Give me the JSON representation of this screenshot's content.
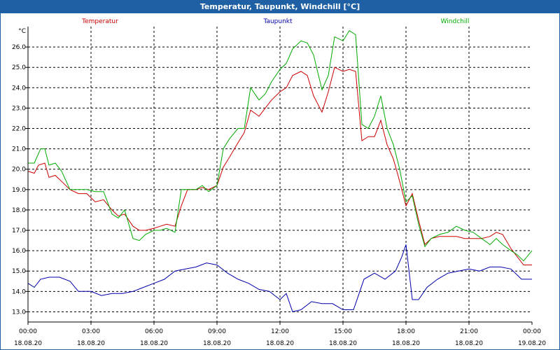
{
  "window": {
    "title": "Temperatur, Taupunkt, Windchill [°C]"
  },
  "chart_data": {
    "type": "line",
    "title": "Temperatur, Taupunkt, Windchill [°C]",
    "ylabel": "°C",
    "ylim": [
      12.5,
      27.0
    ],
    "xlim": [
      0,
      24
    ],
    "grid": true,
    "legend_position": "top",
    "yticks": [
      13.0,
      14.0,
      15.0,
      16.0,
      17.0,
      18.0,
      19.0,
      20.0,
      21.0,
      22.0,
      23.0,
      24.0,
      25.0,
      26.0
    ],
    "xticks": [
      {
        "x": 0,
        "time": "00:00",
        "date": "18.08.20"
      },
      {
        "x": 3,
        "time": "03:00",
        "date": "18.08.20"
      },
      {
        "x": 6,
        "time": "06:00",
        "date": "18.08.20"
      },
      {
        "x": 9,
        "time": "09:00",
        "date": "18.08.20"
      },
      {
        "x": 12,
        "time": "12:00",
        "date": "18.08.20"
      },
      {
        "x": 15,
        "time": "15:00",
        "date": "18.08.20"
      },
      {
        "x": 18,
        "time": "18:00",
        "date": "18.08.20"
      },
      {
        "x": 21,
        "time": "21:00",
        "date": "18.08.20"
      },
      {
        "x": 24,
        "time": "00:00",
        "date": "19.08.20"
      }
    ],
    "series": [
      {
        "name": "Temperatur",
        "color": "#cc0000",
        "points": [
          [
            0,
            19.9
          ],
          [
            0.3,
            19.8
          ],
          [
            0.5,
            20.2
          ],
          [
            0.8,
            20.3
          ],
          [
            1.0,
            19.6
          ],
          [
            1.3,
            19.7
          ],
          [
            1.6,
            19.4
          ],
          [
            2.0,
            19.0
          ],
          [
            2.4,
            18.8
          ],
          [
            2.8,
            18.8
          ],
          [
            3.2,
            18.4
          ],
          [
            3.6,
            18.5
          ],
          [
            4.0,
            18.0
          ],
          [
            4.3,
            17.7
          ],
          [
            4.6,
            17.8
          ],
          [
            5.0,
            17.2
          ],
          [
            5.3,
            17.0
          ],
          [
            5.6,
            17.0
          ],
          [
            6.0,
            17.1
          ],
          [
            6.3,
            17.2
          ],
          [
            6.6,
            17.3
          ],
          [
            7.0,
            17.2
          ],
          [
            7.3,
            18.2
          ],
          [
            7.6,
            19.0
          ],
          [
            8.0,
            19.0
          ],
          [
            8.3,
            19.1
          ],
          [
            8.6,
            19.0
          ],
          [
            9.0,
            19.2
          ],
          [
            9.3,
            20.1
          ],
          [
            9.6,
            20.6
          ],
          [
            10.0,
            21.3
          ],
          [
            10.3,
            21.8
          ],
          [
            10.6,
            22.9
          ],
          [
            11.0,
            22.6
          ],
          [
            11.3,
            23.0
          ],
          [
            11.6,
            23.4
          ],
          [
            12.0,
            23.8
          ],
          [
            12.3,
            24.0
          ],
          [
            12.6,
            24.6
          ],
          [
            13.0,
            24.8
          ],
          [
            13.3,
            24.6
          ],
          [
            13.6,
            23.6
          ],
          [
            14.0,
            22.8
          ],
          [
            14.3,
            23.8
          ],
          [
            14.6,
            25.0
          ],
          [
            15.0,
            24.8
          ],
          [
            15.3,
            24.9
          ],
          [
            15.6,
            24.8
          ],
          [
            15.9,
            21.4
          ],
          [
            16.2,
            21.6
          ],
          [
            16.5,
            21.6
          ],
          [
            16.8,
            22.4
          ],
          [
            17.1,
            21.2
          ],
          [
            17.4,
            20.5
          ],
          [
            17.7,
            19.4
          ],
          [
            18.0,
            18.2
          ],
          [
            18.3,
            18.8
          ],
          [
            18.6,
            17.5
          ],
          [
            18.9,
            16.3
          ],
          [
            19.2,
            16.6
          ],
          [
            19.6,
            16.7
          ],
          [
            20.0,
            16.7
          ],
          [
            20.4,
            16.7
          ],
          [
            20.8,
            16.6
          ],
          [
            21.2,
            16.6
          ],
          [
            21.6,
            16.6
          ],
          [
            22.0,
            16.7
          ],
          [
            22.3,
            16.9
          ],
          [
            22.6,
            16.8
          ],
          [
            23.0,
            16.1
          ],
          [
            23.3,
            15.7
          ],
          [
            23.6,
            15.3
          ],
          [
            24.0,
            15.3
          ]
        ]
      },
      {
        "name": "Taupunkt",
        "color": "#0000aa",
        "points": [
          [
            0,
            14.4
          ],
          [
            0.3,
            14.2
          ],
          [
            0.6,
            14.6
          ],
          [
            1.0,
            14.7
          ],
          [
            1.5,
            14.7
          ],
          [
            2.0,
            14.5
          ],
          [
            2.4,
            14.0
          ],
          [
            3.0,
            14.0
          ],
          [
            3.5,
            13.8
          ],
          [
            4.0,
            13.9
          ],
          [
            4.5,
            13.9
          ],
          [
            5.0,
            14.0
          ],
          [
            5.5,
            14.2
          ],
          [
            6.0,
            14.4
          ],
          [
            6.5,
            14.6
          ],
          [
            7.0,
            15.0
          ],
          [
            7.5,
            15.1
          ],
          [
            8.0,
            15.2
          ],
          [
            8.5,
            15.4
          ],
          [
            9.0,
            15.3
          ],
          [
            9.5,
            14.9
          ],
          [
            10.0,
            14.6
          ],
          [
            10.5,
            14.4
          ],
          [
            11.0,
            14.1
          ],
          [
            11.5,
            14.0
          ],
          [
            12.0,
            13.6
          ],
          [
            12.3,
            13.9
          ],
          [
            12.6,
            13.0
          ],
          [
            13.0,
            13.1
          ],
          [
            13.5,
            13.5
          ],
          [
            14.0,
            13.4
          ],
          [
            14.5,
            13.4
          ],
          [
            15.0,
            13.1
          ],
          [
            15.5,
            13.1
          ],
          [
            16.0,
            14.6
          ],
          [
            16.5,
            14.9
          ],
          [
            17.0,
            14.6
          ],
          [
            17.5,
            15.0
          ],
          [
            17.8,
            15.7
          ],
          [
            18.0,
            16.3
          ],
          [
            18.3,
            13.6
          ],
          [
            18.6,
            13.6
          ],
          [
            19.0,
            14.2
          ],
          [
            19.5,
            14.6
          ],
          [
            20.0,
            14.9
          ],
          [
            20.5,
            15.0
          ],
          [
            21.0,
            15.1
          ],
          [
            21.5,
            15.0
          ],
          [
            22.0,
            15.2
          ],
          [
            22.5,
            15.2
          ],
          [
            23.0,
            15.1
          ],
          [
            23.5,
            14.6
          ],
          [
            24.0,
            14.6
          ]
        ]
      },
      {
        "name": "Windchill",
        "color": "#00aa00",
        "points": [
          [
            0,
            20.3
          ],
          [
            0.3,
            20.3
          ],
          [
            0.6,
            21.0
          ],
          [
            0.8,
            21.0
          ],
          [
            1.0,
            20.2
          ],
          [
            1.3,
            20.3
          ],
          [
            1.6,
            19.9
          ],
          [
            2.0,
            19.0
          ],
          [
            2.4,
            19.0
          ],
          [
            2.8,
            19.0
          ],
          [
            3.2,
            18.9
          ],
          [
            3.6,
            18.9
          ],
          [
            4.0,
            17.8
          ],
          [
            4.3,
            17.6
          ],
          [
            4.6,
            18.0
          ],
          [
            5.0,
            16.6
          ],
          [
            5.3,
            16.5
          ],
          [
            5.6,
            16.8
          ],
          [
            6.0,
            17.0
          ],
          [
            6.3,
            17.0
          ],
          [
            6.6,
            17.1
          ],
          [
            7.0,
            16.9
          ],
          [
            7.3,
            19.0
          ],
          [
            7.6,
            19.0
          ],
          [
            8.0,
            19.0
          ],
          [
            8.3,
            19.2
          ],
          [
            8.6,
            18.9
          ],
          [
            9.0,
            19.2
          ],
          [
            9.3,
            21.0
          ],
          [
            9.6,
            21.5
          ],
          [
            10.0,
            22.0
          ],
          [
            10.3,
            22.0
          ],
          [
            10.6,
            24.0
          ],
          [
            11.0,
            23.4
          ],
          [
            11.3,
            23.7
          ],
          [
            11.6,
            24.3
          ],
          [
            12.0,
            24.9
          ],
          [
            12.3,
            25.2
          ],
          [
            12.6,
            25.9
          ],
          [
            13.0,
            26.3
          ],
          [
            13.3,
            26.2
          ],
          [
            13.6,
            25.6
          ],
          [
            14.0,
            23.9
          ],
          [
            14.3,
            24.6
          ],
          [
            14.6,
            26.5
          ],
          [
            15.0,
            26.3
          ],
          [
            15.3,
            26.8
          ],
          [
            15.6,
            26.6
          ],
          [
            15.9,
            22.2
          ],
          [
            16.2,
            22.0
          ],
          [
            16.5,
            22.6
          ],
          [
            16.8,
            23.6
          ],
          [
            17.1,
            22.0
          ],
          [
            17.4,
            21.2
          ],
          [
            17.7,
            20.0
          ],
          [
            18.0,
            18.4
          ],
          [
            18.3,
            18.7
          ],
          [
            18.6,
            17.3
          ],
          [
            18.9,
            16.2
          ],
          [
            19.2,
            16.6
          ],
          [
            19.6,
            16.8
          ],
          [
            20.0,
            16.9
          ],
          [
            20.4,
            17.2
          ],
          [
            20.8,
            17.0
          ],
          [
            21.2,
            16.9
          ],
          [
            21.6,
            16.6
          ],
          [
            22.0,
            16.3
          ],
          [
            22.3,
            16.6
          ],
          [
            22.6,
            16.3
          ],
          [
            23.0,
            16.0
          ],
          [
            23.3,
            15.8
          ],
          [
            23.6,
            15.5
          ],
          [
            24.0,
            16.0
          ]
        ]
      }
    ]
  }
}
